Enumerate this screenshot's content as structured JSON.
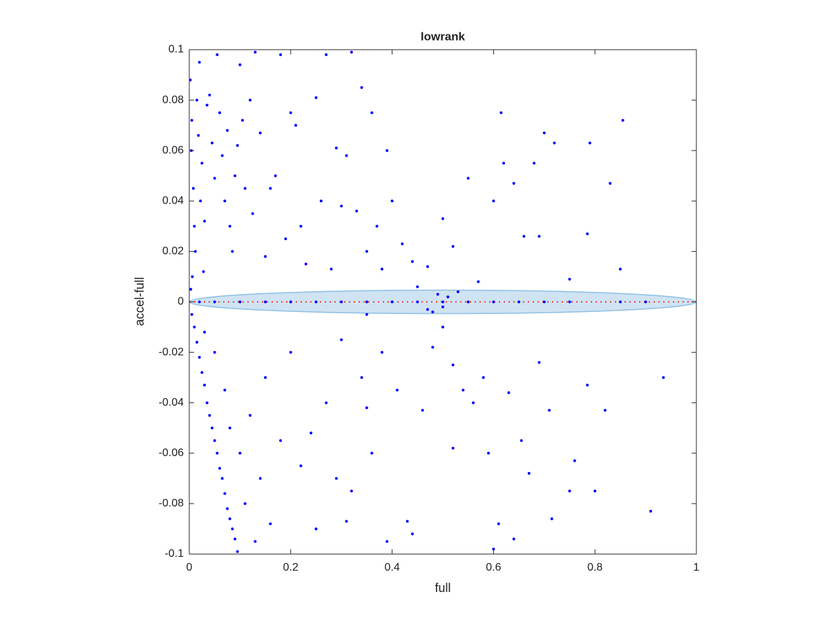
{
  "chart_data": {
    "type": "scatter",
    "title": "lowrank",
    "xlabel": "full",
    "ylabel": "accel-full",
    "color": "#0000ff",
    "x": [
      0.002,
      0.004,
      0.005,
      0.008,
      0.01,
      0.012,
      0.006,
      0.003,
      0.015,
      0.02,
      0.018,
      0.022,
      0.025,
      0.028,
      0.03,
      0.035,
      0.04,
      0.045,
      0.05,
      0.055,
      0.06,
      0.065,
      0.07,
      0.075,
      0.08,
      0.085,
      0.09,
      0.095,
      0.1,
      0.105,
      0.11,
      0.12,
      0.125,
      0.13,
      0.14,
      0.15,
      0.16,
      0.17,
      0.18,
      0.19,
      0.2,
      0.21,
      0.22,
      0.23,
      0.25,
      0.26,
      0.27,
      0.28,
      0.29,
      0.3,
      0.31,
      0.32,
      0.33,
      0.34,
      0.35,
      0.36,
      0.37,
      0.38,
      0.39,
      0.4,
      0.42,
      0.44,
      0.45,
      0.47,
      0.5,
      0.52,
      0.55,
      0.57,
      0.6,
      0.615,
      0.62,
      0.64,
      0.66,
      0.68,
      0.7,
      0.72,
      0.75,
      0.79,
      0.83,
      0.855,
      0.85,
      0.69,
      0.785,
      0.005,
      0.01,
      0.015,
      0.02,
      0.025,
      0.03,
      0.035,
      0.04,
      0.045,
      0.05,
      0.055,
      0.06,
      0.065,
      0.07,
      0.075,
      0.08,
      0.085,
      0.09,
      0.095,
      0.03,
      0.05,
      0.07,
      0.08,
      0.1,
      0.11,
      0.12,
      0.13,
      0.14,
      0.15,
      0.16,
      0.18,
      0.2,
      0.22,
      0.24,
      0.25,
      0.27,
      0.29,
      0.3,
      0.31,
      0.32,
      0.34,
      0.35,
      0.36,
      0.38,
      0.39,
      0.41,
      0.43,
      0.44,
      0.46,
      0.48,
      0.5,
      0.52,
      0.54,
      0.56,
      0.58,
      0.6,
      0.61,
      0.63,
      0.64,
      0.655,
      0.67,
      0.69,
      0.71,
      0.715,
      0.75,
      0.76,
      0.785,
      0.8,
      0.82,
      0.91,
      0.935,
      0.52,
      0.59,
      0.47,
      0.35,
      0.02,
      0.05,
      0.1,
      0.15,
      0.2,
      0.25,
      0.3,
      0.35,
      0.4,
      0.45,
      0.5,
      0.55,
      0.6,
      0.65,
      0.7,
      0.75,
      0.85,
      0.9,
      0.49,
      0.5,
      0.51,
      0.53,
      0.48
    ],
    "values": [
      0.088,
      0.06,
      0.072,
      0.045,
      0.03,
      0.02,
      0.01,
      0.005,
      0.08,
      0.095,
      0.066,
      0.04,
      0.055,
      0.012,
      0.032,
      0.078,
      0.082,
      0.063,
      0.049,
      0.098,
      0.075,
      0.058,
      0.04,
      0.068,
      0.03,
      0.02,
      0.05,
      0.062,
      0.094,
      0.072,
      0.045,
      0.08,
      0.035,
      0.099,
      0.067,
      0.018,
      0.045,
      0.05,
      0.098,
      0.025,
      0.075,
      0.07,
      0.03,
      0.015,
      0.081,
      0.04,
      0.098,
      0.013,
      0.061,
      0.038,
      0.058,
      0.099,
      0.036,
      0.085,
      0.02,
      0.075,
      0.03,
      0.013,
      0.06,
      0.04,
      0.023,
      0.016,
      0.006,
      0.014,
      0.033,
      0.022,
      0.049,
      0.008,
      0.04,
      0.075,
      0.055,
      0.047,
      0.026,
      0.055,
      0.067,
      0.063,
      0.009,
      0.063,
      0.047,
      0.072,
      0.013,
      0.026,
      0.027,
      -0.005,
      -0.01,
      -0.016,
      -0.022,
      -0.028,
      -0.033,
      -0.04,
      -0.045,
      -0.05,
      -0.055,
      -0.06,
      -0.066,
      -0.07,
      -0.076,
      -0.082,
      -0.086,
      -0.09,
      -0.094,
      -0.099,
      -0.012,
      -0.02,
      -0.035,
      -0.05,
      -0.06,
      -0.08,
      -0.045,
      -0.095,
      -0.07,
      -0.03,
      -0.088,
      -0.055,
      -0.02,
      -0.065,
      -0.052,
      -0.09,
      -0.04,
      -0.07,
      -0.015,
      -0.087,
      -0.075,
      -0.03,
      -0.042,
      -0.06,
      -0.02,
      -0.095,
      -0.035,
      -0.087,
      -0.092,
      -0.043,
      -0.018,
      -0.01,
      -0.025,
      -0.035,
      -0.04,
      -0.03,
      -0.098,
      -0.088,
      -0.036,
      -0.094,
      -0.055,
      -0.068,
      -0.024,
      -0.043,
      -0.086,
      -0.075,
      -0.063,
      -0.033,
      -0.075,
      -0.043,
      -0.083,
      -0.03,
      -0.058,
      -0.06,
      -0.003,
      -0.005,
      0,
      0,
      0,
      0,
      0,
      0,
      0,
      0,
      0,
      0,
      0,
      0,
      0,
      0,
      0,
      0,
      0,
      0,
      0.003,
      -0.002,
      0.002,
      0.004,
      -0.004
    ],
    "xlim": [
      0,
      1
    ],
    "xticks": [
      0,
      0.2,
      0.4,
      0.6,
      0.8,
      1
    ],
    "ylim": [
      -0.1,
      0.1
    ],
    "yticks": [
      -0.1,
      -0.08,
      -0.06,
      -0.04,
      -0.02,
      0,
      0.02,
      0.04,
      0.06,
      0.08,
      0.1
    ]
  }
}
